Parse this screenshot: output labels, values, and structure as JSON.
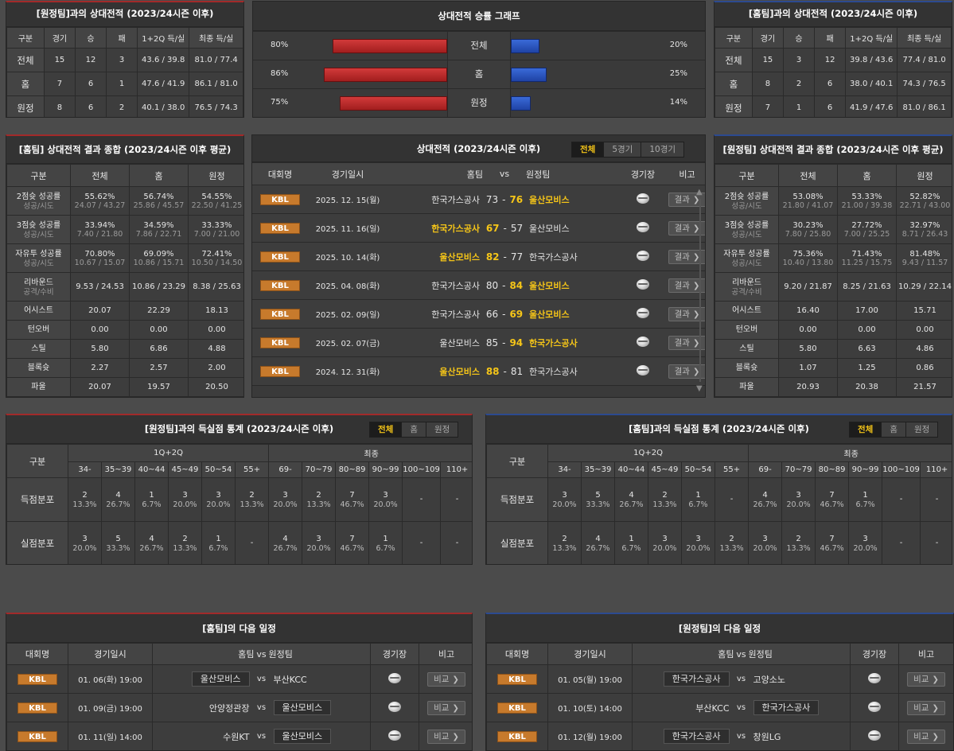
{
  "h2h_away": {
    "title": "[원정팀]과의 상대전적 (2023/24시즌 이후)",
    "headers": [
      "구분",
      "경기",
      "승",
      "패",
      "1+2Q 득/실",
      "최종 득/실"
    ],
    "rows": [
      [
        "전체",
        "15",
        "12",
        "3",
        "43.6 / 39.8",
        "81.0 / 77.4"
      ],
      [
        "홈",
        "7",
        "6",
        "1",
        "47.6 / 41.9",
        "86.1 / 81.0"
      ],
      [
        "원정",
        "8",
        "6",
        "2",
        "40.1 / 38.0",
        "76.5 / 74.3"
      ]
    ]
  },
  "h2h_home": {
    "title": "[홈팀]과의 상대전적 (2023/24시즌 이후)",
    "headers": [
      "구분",
      "경기",
      "승",
      "패",
      "1+2Q 득/실",
      "최종 득/실"
    ],
    "rows": [
      [
        "전체",
        "15",
        "3",
        "12",
        "39.8 / 43.6",
        "77.4 / 81.0"
      ],
      [
        "홈",
        "8",
        "2",
        "6",
        "38.0 / 40.1",
        "74.3 / 76.5"
      ],
      [
        "원정",
        "7",
        "1",
        "6",
        "41.9 / 47.6",
        "81.0 / 86.1"
      ]
    ]
  },
  "winrate": {
    "title": "상대전적 승률 그래프",
    "rows": [
      {
        "label": "전체",
        "left": "80%",
        "right": "20%",
        "lv": 80,
        "rv": 20
      },
      {
        "label": "홈",
        "left": "86%",
        "right": "25%",
        "lv": 86,
        "rv": 25
      },
      {
        "label": "원정",
        "left": "75%",
        "right": "14%",
        "lv": 75,
        "rv": 14
      }
    ],
    "home_color": "#c62828",
    "away_color": "#2c54c4"
  },
  "summary_home": {
    "title": "[홈팀] 상대전적 결과 종합 (2023/24시즌 이후 평균)",
    "headers": [
      "구분",
      "전체",
      "홈",
      "원정"
    ],
    "rows": [
      {
        "label": "2점슛 성공률",
        "sub": "성공/시도",
        "v": [
          [
            "55.62%",
            "24.07 / 43.27"
          ],
          [
            "56.74%",
            "25.86 / 45.57"
          ],
          [
            "54.55%",
            "22.50 / 41.25"
          ]
        ]
      },
      {
        "label": "3점슛 성공률",
        "sub": "성공/시도",
        "v": [
          [
            "33.94%",
            "7.40 / 21.80"
          ],
          [
            "34.59%",
            "7.86 / 22.71"
          ],
          [
            "33.33%",
            "7.00 / 21.00"
          ]
        ]
      },
      {
        "label": "자유투 성공률",
        "sub": "성공/시도",
        "v": [
          [
            "70.80%",
            "10.67 / 15.07"
          ],
          [
            "69.09%",
            "10.86 / 15.71"
          ],
          [
            "72.41%",
            "10.50 / 14.50"
          ]
        ]
      },
      {
        "label": "리바운드",
        "sub": "공격/수비",
        "v": [
          [
            "9.53 / 24.53",
            ""
          ],
          [
            "10.86 / 23.29",
            ""
          ],
          [
            "8.38 / 25.63",
            ""
          ]
        ]
      },
      {
        "label": "어시스트",
        "sub": "",
        "v": [
          [
            "20.07",
            ""
          ],
          [
            "22.29",
            ""
          ],
          [
            "18.13",
            ""
          ]
        ]
      },
      {
        "label": "턴오버",
        "sub": "",
        "v": [
          [
            "0.00",
            ""
          ],
          [
            "0.00",
            ""
          ],
          [
            "0.00",
            ""
          ]
        ]
      },
      {
        "label": "스틸",
        "sub": "",
        "v": [
          [
            "5.80",
            ""
          ],
          [
            "6.86",
            ""
          ],
          [
            "4.88",
            ""
          ]
        ]
      },
      {
        "label": "블록슛",
        "sub": "",
        "v": [
          [
            "2.27",
            ""
          ],
          [
            "2.57",
            ""
          ],
          [
            "2.00",
            ""
          ]
        ]
      },
      {
        "label": "파울",
        "sub": "",
        "v": [
          [
            "20.07",
            ""
          ],
          [
            "19.57",
            ""
          ],
          [
            "20.50",
            ""
          ]
        ]
      }
    ]
  },
  "summary_away": {
    "title": "[원정팀] 상대전적 결과 종합 (2023/24시즌 이후 평균)",
    "headers": [
      "구분",
      "전체",
      "홈",
      "원정"
    ],
    "rows": [
      {
        "label": "2점슛 성공률",
        "sub": "성공/시도",
        "v": [
          [
            "53.08%",
            "21.80 / 41.07"
          ],
          [
            "53.33%",
            "21.00 / 39.38"
          ],
          [
            "52.82%",
            "22.71 / 43.00"
          ]
        ]
      },
      {
        "label": "3점슛 성공률",
        "sub": "성공/시도",
        "v": [
          [
            "30.23%",
            "7.80 / 25.80"
          ],
          [
            "27.72%",
            "7.00 / 25.25"
          ],
          [
            "32.97%",
            "8.71 / 26.43"
          ]
        ]
      },
      {
        "label": "자유투 성공률",
        "sub": "성공/시도",
        "v": [
          [
            "75.36%",
            "10.40 / 13.80"
          ],
          [
            "71.43%",
            "11.25 / 15.75"
          ],
          [
            "81.48%",
            "9.43 / 11.57"
          ]
        ]
      },
      {
        "label": "리바운드",
        "sub": "공격/수비",
        "v": [
          [
            "9.20 / 21.87",
            ""
          ],
          [
            "8.25 / 21.63",
            ""
          ],
          [
            "10.29 / 22.14",
            ""
          ]
        ]
      },
      {
        "label": "어시스트",
        "sub": "",
        "v": [
          [
            "16.40",
            ""
          ],
          [
            "17.00",
            ""
          ],
          [
            "15.71",
            ""
          ]
        ]
      },
      {
        "label": "턴오버",
        "sub": "",
        "v": [
          [
            "0.00",
            ""
          ],
          [
            "0.00",
            ""
          ],
          [
            "0.00",
            ""
          ]
        ]
      },
      {
        "label": "스틸",
        "sub": "",
        "v": [
          [
            "5.80",
            ""
          ],
          [
            "6.63",
            ""
          ],
          [
            "4.86",
            ""
          ]
        ]
      },
      {
        "label": "블록슛",
        "sub": "",
        "v": [
          [
            "1.07",
            ""
          ],
          [
            "1.25",
            ""
          ],
          [
            "0.86",
            ""
          ]
        ]
      },
      {
        "label": "파울",
        "sub": "",
        "v": [
          [
            "20.93",
            ""
          ],
          [
            "20.38",
            ""
          ],
          [
            "21.57",
            ""
          ]
        ]
      }
    ]
  },
  "h2h_results": {
    "title": "상대전적 (2023/24시즌 이후)",
    "tabs": [
      "전체",
      "5경기",
      "10경기"
    ],
    "headers": [
      "대회명",
      "경기일시",
      "홈팀",
      "vs",
      "원정팀",
      "경기장",
      "비고"
    ],
    "btn": "결과",
    "games": [
      {
        "league": "KBL",
        "date": "2025. 12. 15(월)",
        "home": "한국가스공사",
        "hs": "73",
        "as": "76",
        "away": "울산모비스",
        "win": "away"
      },
      {
        "league": "KBL",
        "date": "2025. 11. 16(일)",
        "home": "한국가스공사",
        "hs": "67",
        "as": "57",
        "away": "울산모비스",
        "win": "home"
      },
      {
        "league": "KBL",
        "date": "2025. 10. 14(화)",
        "home": "울산모비스",
        "hs": "82",
        "as": "77",
        "away": "한국가스공사",
        "win": "home"
      },
      {
        "league": "KBL",
        "date": "2025. 04. 08(화)",
        "home": "한국가스공사",
        "hs": "80",
        "as": "84",
        "away": "울산모비스",
        "win": "away"
      },
      {
        "league": "KBL",
        "date": "2025. 02. 09(일)",
        "home": "한국가스공사",
        "hs": "66",
        "as": "69",
        "away": "울산모비스",
        "win": "away"
      },
      {
        "league": "KBL",
        "date": "2025. 02. 07(금)",
        "home": "울산모비스",
        "hs": "85",
        "as": "94",
        "away": "한국가스공사",
        "win": "away"
      },
      {
        "league": "KBL",
        "date": "2024. 12. 31(화)",
        "home": "울산모비스",
        "hs": "88",
        "as": "81",
        "away": "한국가스공사",
        "win": "home"
      }
    ]
  },
  "dist_away": {
    "title": "[원정팀]과의 득실점 통계 (2023/24시즌 이후)",
    "tabs": [
      "전체",
      "홈",
      "원정"
    ],
    "group1": "1Q+2Q",
    "group2": "최종",
    "label_col": "구분",
    "cols1": [
      "34-",
      "35~39",
      "40~44",
      "45~49",
      "50~54",
      "55+"
    ],
    "cols2": [
      "69-",
      "70~79",
      "80~89",
      "90~99",
      "100~109",
      "110+"
    ],
    "rows": [
      {
        "label": "득점분포",
        "cells": [
          [
            "2",
            "13.3%"
          ],
          [
            "4",
            "26.7%"
          ],
          [
            "1",
            "6.7%"
          ],
          [
            "3",
            "20.0%"
          ],
          [
            "3",
            "20.0%"
          ],
          [
            "2",
            "13.3%"
          ],
          [
            "3",
            "20.0%"
          ],
          [
            "2",
            "13.3%"
          ],
          [
            "7",
            "46.7%"
          ],
          [
            "3",
            "20.0%"
          ],
          [
            "-",
            ""
          ],
          [
            "-",
            ""
          ]
        ]
      },
      {
        "label": "실점분포",
        "cells": [
          [
            "3",
            "20.0%"
          ],
          [
            "5",
            "33.3%"
          ],
          [
            "4",
            "26.7%"
          ],
          [
            "2",
            "13.3%"
          ],
          [
            "1",
            "6.7%"
          ],
          [
            "-",
            ""
          ],
          [
            "4",
            "26.7%"
          ],
          [
            "3",
            "20.0%"
          ],
          [
            "7",
            "46.7%"
          ],
          [
            "1",
            "6.7%"
          ],
          [
            "-",
            ""
          ],
          [
            "-",
            ""
          ]
        ]
      }
    ]
  },
  "dist_home": {
    "title": "[홈팀]과의 득실점 통계 (2023/24시즌 이후)",
    "tabs": [
      "전체",
      "홈",
      "원정"
    ],
    "group1": "1Q+2Q",
    "group2": "최종",
    "label_col": "구분",
    "cols1": [
      "34-",
      "35~39",
      "40~44",
      "45~49",
      "50~54",
      "55+"
    ],
    "cols2": [
      "69-",
      "70~79",
      "80~89",
      "90~99",
      "100~109",
      "110+"
    ],
    "rows": [
      {
        "label": "득점분포",
        "cells": [
          [
            "3",
            "20.0%"
          ],
          [
            "5",
            "33.3%"
          ],
          [
            "4",
            "26.7%"
          ],
          [
            "2",
            "13.3%"
          ],
          [
            "1",
            "6.7%"
          ],
          [
            "-",
            ""
          ],
          [
            "4",
            "26.7%"
          ],
          [
            "3",
            "20.0%"
          ],
          [
            "7",
            "46.7%"
          ],
          [
            "1",
            "6.7%"
          ],
          [
            "-",
            ""
          ],
          [
            "-",
            ""
          ]
        ]
      },
      {
        "label": "실점분포",
        "cells": [
          [
            "2",
            "13.3%"
          ],
          [
            "4",
            "26.7%"
          ],
          [
            "1",
            "6.7%"
          ],
          [
            "3",
            "20.0%"
          ],
          [
            "3",
            "20.0%"
          ],
          [
            "2",
            "13.3%"
          ],
          [
            "3",
            "20.0%"
          ],
          [
            "2",
            "13.3%"
          ],
          [
            "7",
            "46.7%"
          ],
          [
            "3",
            "20.0%"
          ],
          [
            "-",
            ""
          ],
          [
            "-",
            ""
          ]
        ]
      }
    ]
  },
  "next_home": {
    "title": "[홈팀]의 다음 일정",
    "headers": [
      "대회명",
      "경기일시",
      "홈팀",
      "vs",
      "원정팀",
      "경기장",
      "비고"
    ],
    "btn": "비교",
    "games": [
      {
        "league": "KBL",
        "date": "01. 06(화) 19:00",
        "home": "울산모비스",
        "away": "부산KCC",
        "box": "home"
      },
      {
        "league": "KBL",
        "date": "01. 09(금) 19:00",
        "home": "안양정관장",
        "away": "울산모비스",
        "box": "away"
      },
      {
        "league": "KBL",
        "date": "01. 11(일) 14:00",
        "home": "수원KT",
        "away": "울산모비스",
        "box": "away"
      }
    ]
  },
  "next_away": {
    "title": "[원정팀]의 다음 일정",
    "headers": [
      "대회명",
      "경기일시",
      "홈팀",
      "vs",
      "원정팀",
      "경기장",
      "비고"
    ],
    "btn": "비교",
    "games": [
      {
        "league": "KBL",
        "date": "01. 05(월) 19:00",
        "home": "한국가스공사",
        "away": "고양소노",
        "box": "home"
      },
      {
        "league": "KBL",
        "date": "01. 10(토) 14:00",
        "home": "부산KCC",
        "away": "한국가스공사",
        "box": "away"
      },
      {
        "league": "KBL",
        "date": "01. 12(월) 19:00",
        "home": "한국가스공사",
        "away": "창원LG",
        "box": "home"
      }
    ]
  }
}
